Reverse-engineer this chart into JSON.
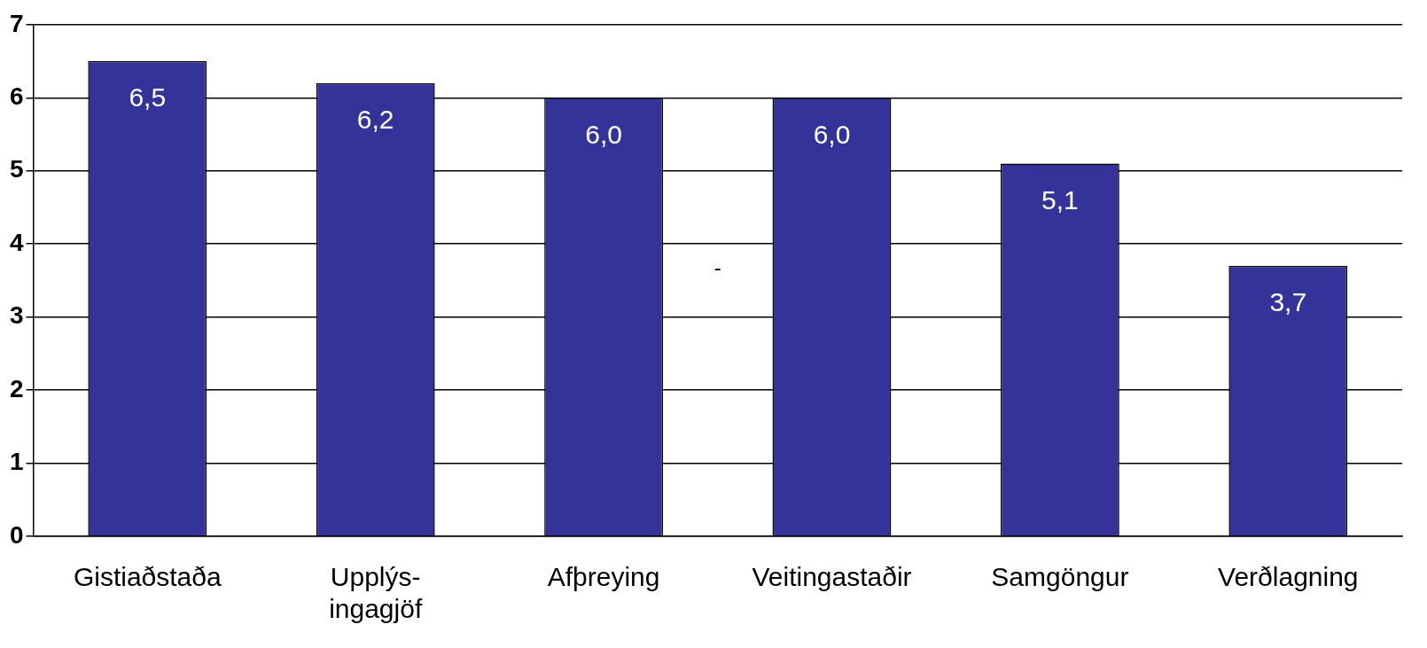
{
  "chart_data": {
    "type": "bar",
    "categories": [
      "Gistiaðstaða",
      "Upplýs-\ningagjöf",
      "Afþreying",
      "Veitingastaðir",
      "Samgöngur",
      "Verðlagning"
    ],
    "values": [
      6.5,
      6.2,
      6.0,
      6.0,
      5.1,
      3.7
    ],
    "color": "#333399",
    "value_labels": [
      "6,5",
      "6,2",
      "6,0",
      "6,0",
      "5,1",
      "3,7"
    ],
    "ylim": [
      0,
      7
    ],
    "yticks": [
      0,
      1,
      2,
      3,
      4,
      5,
      6,
      7
    ],
    "grid": "y",
    "legend": false,
    "annotations": [
      "-"
    ]
  }
}
